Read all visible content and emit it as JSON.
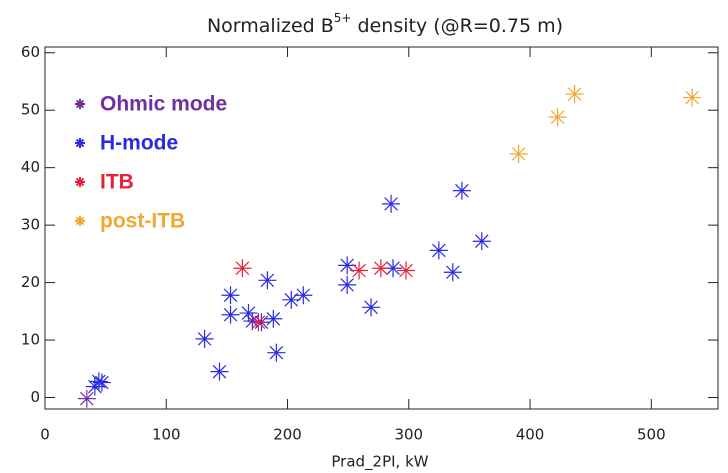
{
  "chart_data": {
    "type": "scatter",
    "title": {
      "text": "Normalized B",
      "superscript": "5+",
      "rest": " density (@R=0.75 m)"
    },
    "x_label": "Prad_2PI, kW",
    "xlim": [
      0,
      555
    ],
    "ylim": [
      -2,
      61
    ],
    "xticks": [
      0,
      100,
      200,
      300,
      400,
      500
    ],
    "yticks": [
      0,
      10,
      20,
      30,
      40,
      50,
      60
    ],
    "legend": "upper left",
    "series": [
      {
        "name": "Ohmic mode",
        "color": "#7030a0",
        "x": [
          34.5
        ],
        "values": [
          -0.2
        ]
      },
      {
        "name": "H-mode",
        "color": "#2a2ae0",
        "x": [
          41.1,
          44.4,
          46.9,
          131.6,
          143.9,
          153,
          153,
          167.8,
          171,
          178.5,
          183.4,
          188.3,
          190.8,
          203.1,
          213,
          249.2,
          249.2,
          268.9,
          285.4,
          287,
          324.8,
          336.3,
          343.8,
          360.2
        ],
        "values": [
          1.9,
          2.8,
          2.6,
          10.2,
          4.5,
          17.8,
          14.4,
          14.7,
          13.3,
          13.1,
          20.4,
          13.7,
          7.8,
          17,
          17.8,
          23,
          19.6,
          15.7,
          33.7,
          22.5,
          25.6,
          21.8,
          36,
          27.2
        ]
      },
      {
        "name": "ITB",
        "color": "#e8203a",
        "x": [
          162.8,
          176,
          259,
          277,
          297.7
        ],
        "values": [
          22.5,
          13.1,
          22.1,
          22.5,
          22.1
        ]
      },
      {
        "name": "post-ITB",
        "color": "#f0a830",
        "x": [
          390.6,
          422.7,
          436.7,
          533.7
        ],
        "values": [
          42.4,
          48.8,
          52.8,
          52.2
        ]
      }
    ]
  }
}
